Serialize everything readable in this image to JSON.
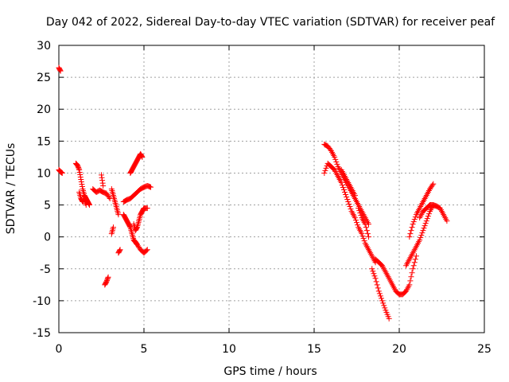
{
  "chart_data": {
    "type": "scatter",
    "title": "Day 042 of 2022, Sidereal Day-to-day VTEC variation (SDTVAR) for receiver peaf",
    "xlabel": "GPS time / hours",
    "ylabel": "SDTVAR / TECUs",
    "xlim": [
      0,
      25
    ],
    "ylim": [
      -15,
      30
    ],
    "xticks": [
      0,
      5,
      10,
      15,
      20,
      25
    ],
    "yticks": [
      -15,
      -10,
      -5,
      0,
      5,
      10,
      15,
      20,
      25,
      30
    ],
    "grid": true,
    "marker": "+",
    "series_color": "#ff0000",
    "segments": [
      {
        "x": [
          0.0,
          0.1
        ],
        "y": [
          26.5,
          26.0
        ]
      },
      {
        "x": [
          0.0,
          0.1,
          0.2
        ],
        "y": [
          10.5,
          10.2,
          10.0
        ]
      },
      {
        "x": [
          1.0,
          1.1,
          1.2,
          1.3,
          1.4,
          1.5,
          1.6,
          1.7,
          1.8
        ],
        "y": [
          11.5,
          11.2,
          10.5,
          9.0,
          7.5,
          6.5,
          6.0,
          5.5,
          5.0
        ]
      },
      {
        "x": [
          1.2,
          1.3,
          1.4,
          1.5,
          1.6
        ],
        "y": [
          7.0,
          6.0,
          5.5,
          6.0,
          5.0
        ]
      },
      {
        "x": [
          2.0,
          2.2,
          2.4,
          2.6,
          2.8,
          3.0
        ],
        "y": [
          7.5,
          7.0,
          7.3,
          7.0,
          6.8,
          6.0
        ]
      },
      {
        "x": [
          2.5,
          2.6
        ],
        "y": [
          9.7,
          8.0
        ]
      },
      {
        "x": [
          2.7,
          2.8,
          2.9
        ],
        "y": [
          -7.5,
          -7.0,
          -6.3
        ]
      },
      {
        "x": [
          3.1,
          3.2,
          3.3,
          3.4,
          3.5
        ],
        "y": [
          7.5,
          6.5,
          5.5,
          4.5,
          3.5
        ]
      },
      {
        "x": [
          3.1,
          3.2
        ],
        "y": [
          0.5,
          1.5
        ]
      },
      {
        "x": [
          3.5,
          3.6
        ],
        "y": [
          -2.5,
          -2.0
        ]
      },
      {
        "x": [
          3.8,
          4.0,
          4.2,
          4.4,
          4.6,
          4.8,
          5.0,
          5.2,
          5.4
        ],
        "y": [
          5.5,
          5.8,
          6.0,
          6.5,
          7.0,
          7.5,
          7.8,
          8.0,
          7.8
        ]
      },
      {
        "x": [
          3.8,
          3.9,
          4.0,
          4.1,
          4.2,
          4.3,
          4.4,
          4.5,
          4.6,
          4.8,
          5.0,
          5.2
        ],
        "y": [
          3.5,
          3.0,
          2.5,
          2.0,
          1.5,
          0.5,
          -0.5,
          -0.8,
          -1.2,
          -2.0,
          -2.5,
          -2.0
        ]
      },
      {
        "x": [
          4.2,
          4.3,
          4.4,
          4.5,
          4.6,
          4.7,
          4.8,
          4.9
        ],
        "y": [
          10.0,
          10.5,
          11.0,
          11.5,
          12.0,
          12.5,
          13.0,
          12.5
        ]
      },
      {
        "x": [
          4.4,
          4.5,
          4.6,
          4.7,
          4.8,
          4.9,
          5.0,
          5.2
        ],
        "y": [
          2.0,
          1.0,
          1.5,
          2.5,
          3.5,
          4.0,
          4.5,
          4.5
        ]
      },
      {
        "x": [
          15.6,
          15.8,
          16.0,
          16.2,
          16.4,
          16.6,
          16.8,
          17.0,
          17.2,
          17.4,
          17.6,
          17.8,
          18.0,
          18.2
        ],
        "y": [
          14.5,
          14.2,
          13.5,
          12.5,
          11.0,
          10.0,
          9.0,
          8.0,
          7.0,
          6.0,
          5.0,
          4.0,
          3.0,
          2.0
        ]
      },
      {
        "x": [
          15.6,
          15.8,
          16.0,
          16.2,
          16.4,
          16.6,
          16.8,
          17.0,
          17.2,
          17.4,
          17.6,
          17.8,
          18.0,
          18.2,
          18.4,
          18.6
        ],
        "y": [
          10.0,
          11.5,
          11.0,
          10.5,
          9.5,
          8.5,
          7.0,
          5.5,
          4.0,
          3.0,
          1.5,
          0.5,
          -1.0,
          -2.0,
          -3.0,
          -4.0
        ]
      },
      {
        "x": [
          16.6,
          16.8,
          17.0,
          17.2,
          17.4
        ],
        "y": [
          10.5,
          9.5,
          8.5,
          7.5,
          6.5
        ]
      },
      {
        "x": [
          17.6,
          17.8,
          18.0,
          18.2
        ],
        "y": [
          4.5,
          3.0,
          2.0,
          0.0
        ]
      },
      {
        "x": [
          18.4,
          18.6,
          18.8,
          19.0,
          19.2,
          19.4
        ],
        "y": [
          -5.0,
          -6.5,
          -8.5,
          -10.0,
          -11.5,
          -12.8
        ]
      },
      {
        "x": [
          18.6,
          18.8,
          19.0,
          19.2,
          19.4,
          19.6,
          19.8,
          20.0,
          20.2,
          20.4,
          20.6,
          20.8,
          21.0
        ],
        "y": [
          -3.5,
          -4.0,
          -4.5,
          -5.5,
          -6.5,
          -7.5,
          -8.5,
          -9.0,
          -9.0,
          -8.5,
          -7.5,
          -5.0,
          -3.0
        ]
      },
      {
        "x": [
          20.4,
          20.6,
          20.8,
          21.0,
          21.2,
          21.4,
          21.6,
          21.8,
          22.0
        ],
        "y": [
          -4.5,
          -3.5,
          -2.5,
          -1.5,
          -0.5,
          1.0,
          2.5,
          4.0,
          5.0
        ]
      },
      {
        "x": [
          20.6,
          20.8,
          21.0,
          21.2,
          21.4,
          21.6,
          21.8,
          22.0
        ],
        "y": [
          0.0,
          2.0,
          3.5,
          4.5,
          5.5,
          6.5,
          7.5,
          8.3
        ]
      },
      {
        "x": [
          21.2,
          21.4,
          21.6,
          21.8,
          22.0,
          22.2,
          22.4,
          22.6,
          22.8
        ],
        "y": [
          3.0,
          4.0,
          4.5,
          5.0,
          5.0,
          4.8,
          4.5,
          3.5,
          2.5
        ]
      }
    ]
  }
}
